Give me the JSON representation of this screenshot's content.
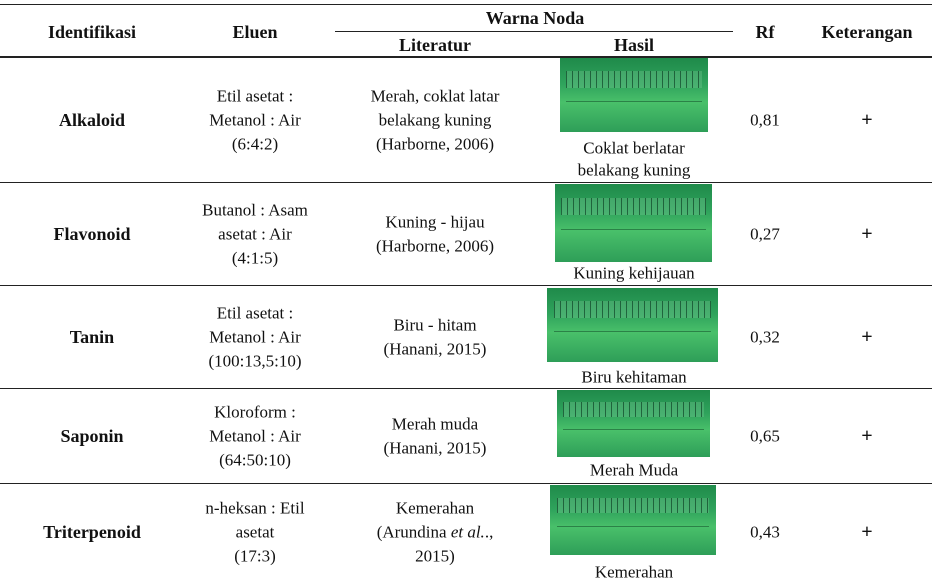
{
  "table": {
    "header": {
      "identifikasi": "Identifikasi",
      "eluen": "Eluen",
      "warna_noda": "Warna Noda",
      "literatur": "Literatur",
      "hasil": "Hasil",
      "rf": "Rf",
      "keterangan": "Keterangan"
    },
    "rows": [
      {
        "identifikasi": "Alkaloid",
        "eluen": [
          "Etil asetat :",
          "Metanol : Air",
          "(6:4:2)"
        ],
        "literatur": [
          "Merah, coklat latar",
          "belakang kuning",
          "(Harborne, 2006)"
        ],
        "hasil": [
          "Coklat berlatar",
          "belakang kuning"
        ],
        "rf": "0,81",
        "keterangan": "+"
      },
      {
        "identifikasi": "Flavonoid",
        "eluen": [
          "Butanol : Asam",
          "asetat : Air",
          "(4:1:5)"
        ],
        "literatur": [
          "Kuning - hijau",
          "(Harborne, 2006)"
        ],
        "hasil": [
          "Kuning kehijauan"
        ],
        "rf": "0,27",
        "keterangan": "+"
      },
      {
        "identifikasi": "Tanin",
        "eluen": [
          "Etil asetat :",
          "Metanol : Air",
          "(100:13,5:10)"
        ],
        "literatur": [
          "Biru - hitam",
          "(Hanani, 2015)"
        ],
        "hasil": [
          "Biru kehitaman"
        ],
        "rf": "0,32",
        "keterangan": "+"
      },
      {
        "identifikasi": "Saponin",
        "eluen": [
          "Kloroform :",
          "Metanol : Air",
          "(64:50:10)"
        ],
        "literatur": [
          "Merah muda",
          "(Hanani, 2015)"
        ],
        "hasil": [
          "Merah Muda"
        ],
        "rf": "0,65",
        "keterangan": "+"
      },
      {
        "identifikasi": "Triterpenoid",
        "eluen": [
          "n-heksan : Etil",
          "asetat",
          "(17:3)"
        ],
        "literatur": [
          "Kemerahan",
          {
            "parts": [
              "(Arundina ",
              "et al.",
              "., "
            ]
          },
          "2015)"
        ],
        "hasil": [
          "Kemerahan"
        ],
        "rf": "0,43",
        "keterangan": "+"
      }
    ]
  }
}
